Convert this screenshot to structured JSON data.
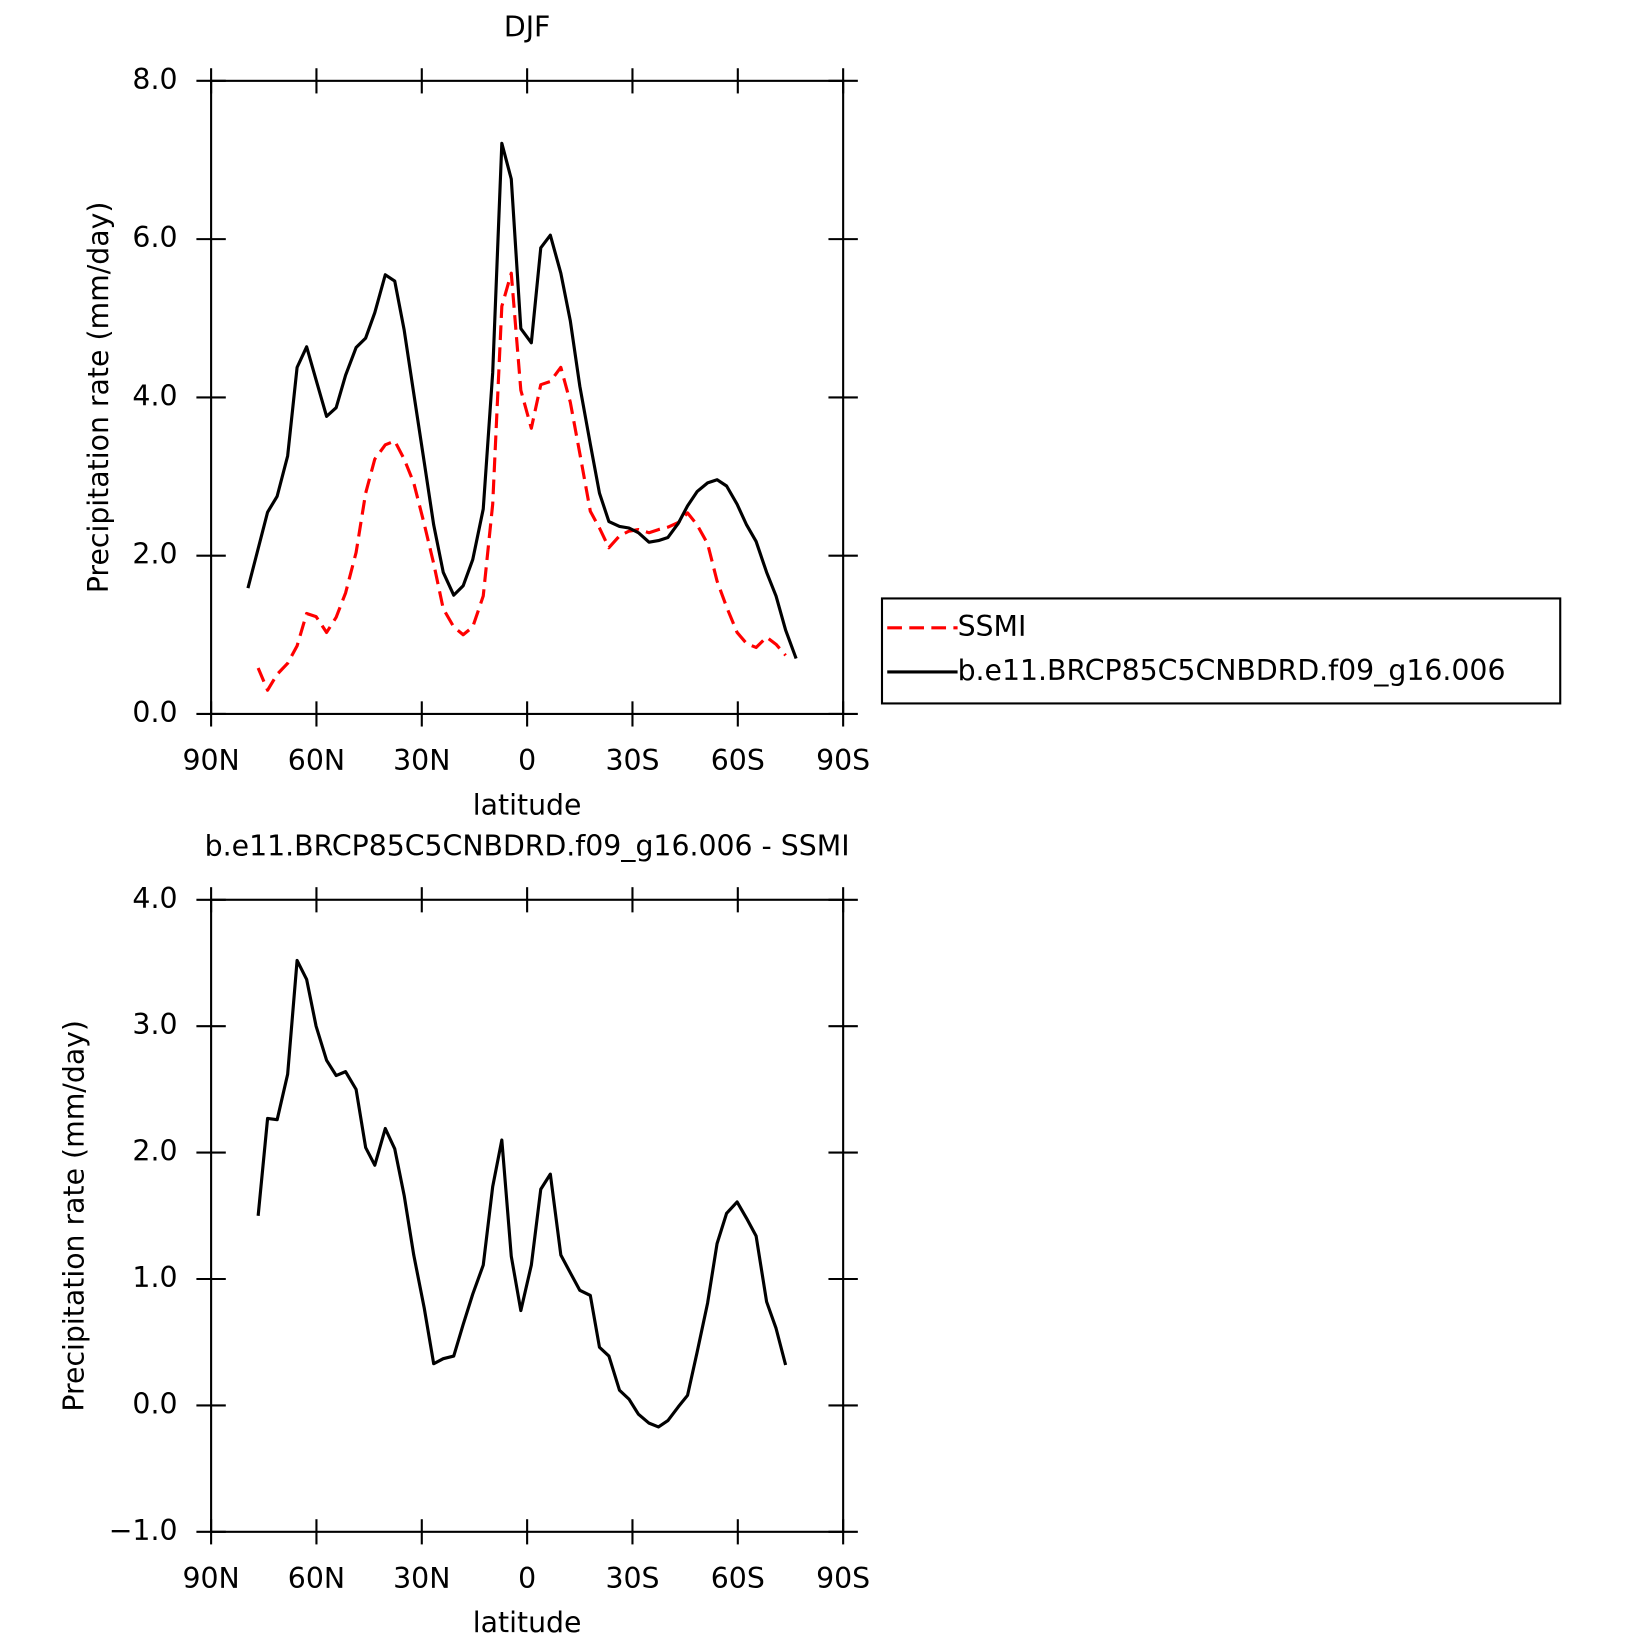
{
  "chart_data": [
    {
      "type": "line",
      "title": "DJF",
      "xlabel": "latitude",
      "ylabel": "Precipitation rate (mm/day)",
      "xlim": [
        90,
        -90
      ],
      "xticks": [
        {
          "value": 90,
          "label": "90N"
        },
        {
          "value": 60,
          "label": "60N"
        },
        {
          "value": 30,
          "label": "30N"
        },
        0,
        {
          "value": -30,
          "label": "30S"
        },
        {
          "value": -60,
          "label": "60S"
        },
        {
          "value": -90,
          "label": "90S"
        }
      ],
      "ylim": [
        0,
        8
      ],
      "yticks": [
        {
          "value": 0,
          "label": "0.0"
        },
        {
          "value": 2,
          "label": "2.0"
        },
        {
          "value": 4,
          "label": "4.0"
        },
        {
          "value": 6,
          "label": "6.0"
        },
        {
          "value": 8,
          "label": "8.0"
        }
      ],
      "legend": "outside right",
      "series": [
        {
          "name": "SSMI",
          "color": "#ff0000",
          "linestyle": "dashed",
          "x": [
            76.6,
            73.9,
            71.2,
            68.2,
            65.5,
            62.8,
            60.1,
            57.1,
            54.4,
            51.7,
            48.7,
            46.0,
            43.4,
            40.4,
            37.7,
            35.0,
            32.3,
            29.3,
            26.6,
            23.9,
            20.9,
            18.2,
            15.5,
            12.5,
            9.8,
            7.2,
            4.5,
            1.8,
            -1.2,
            -3.9,
            -6.6,
            -9.6,
            -12.3,
            -15.0,
            -18.0,
            -20.6,
            -23.3,
            -26.3,
            -29.0,
            -31.7,
            -34.7,
            -37.4,
            -40.1,
            -43.1,
            -45.7,
            -48.4,
            -51.4,
            -54.1,
            -56.8,
            -59.8,
            -62.5,
            -65.2,
            -68.2,
            -70.9,
            -73.6
          ],
          "values": [
            0.58,
            0.3,
            0.5,
            0.64,
            0.86,
            1.27,
            1.23,
            1.03,
            1.22,
            1.53,
            2.04,
            2.79,
            3.22,
            3.4,
            3.45,
            3.22,
            2.92,
            2.4,
            1.9,
            1.33,
            1.1,
            1.0,
            1.1,
            1.49,
            2.65,
            5.15,
            5.57,
            4.09,
            3.61,
            4.16,
            4.2,
            4.38,
            3.94,
            3.29,
            2.56,
            2.35,
            2.1,
            2.25,
            2.31,
            2.33,
            2.29,
            2.33,
            2.36,
            2.42,
            2.54,
            2.39,
            2.15,
            1.68,
            1.35,
            1.03,
            0.89,
            0.84,
            0.97,
            0.88,
            0.74
          ]
        },
        {
          "name": "b.e11.BRCP85C5CNBDRD.f09_g16.006",
          "color": "#000000",
          "linestyle": "solid",
          "x": [
            79.5,
            73.9,
            71.2,
            68.2,
            65.5,
            62.8,
            60.1,
            57.1,
            54.4,
            51.7,
            48.7,
            46.0,
            43.4,
            40.4,
            37.7,
            35.0,
            32.3,
            29.3,
            26.6,
            23.9,
            20.9,
            18.2,
            15.5,
            12.5,
            9.8,
            7.2,
            4.5,
            1.8,
            -1.2,
            -3.9,
            -6.6,
            -9.6,
            -12.3,
            -15.0,
            -18.0,
            -20.6,
            -23.3,
            -26.3,
            -29.0,
            -31.7,
            -34.7,
            -37.4,
            -40.1,
            -43.1,
            -45.7,
            -48.4,
            -51.4,
            -54.1,
            -56.8,
            -59.8,
            -62.5,
            -65.2,
            -68.2,
            -70.9,
            -73.6,
            -76.6
          ],
          "values": [
            1.59,
            2.55,
            2.75,
            3.26,
            4.38,
            4.64,
            4.22,
            3.76,
            3.87,
            4.28,
            4.63,
            4.75,
            5.07,
            5.55,
            5.47,
            4.85,
            4.05,
            3.18,
            2.39,
            1.79,
            1.5,
            1.62,
            1.95,
            2.59,
            4.31,
            7.21,
            6.76,
            4.87,
            4.69,
            5.89,
            6.05,
            5.57,
            4.97,
            4.14,
            3.41,
            2.79,
            2.43,
            2.37,
            2.35,
            2.29,
            2.17,
            2.19,
            2.23,
            2.41,
            2.63,
            2.81,
            2.92,
            2.96,
            2.88,
            2.65,
            2.39,
            2.18,
            1.79,
            1.49,
            1.06,
            0.7
          ]
        }
      ]
    },
    {
      "type": "line",
      "title": "b.e11.BRCP85C5CNBDRD.f09_g16.006 - SSMI",
      "xlabel": "latitude",
      "ylabel": "Precipitation rate (mm/day)",
      "xlim": [
        90,
        -90
      ],
      "xticks": [
        {
          "value": 90,
          "label": "90N"
        },
        {
          "value": 60,
          "label": "60N"
        },
        {
          "value": 30,
          "label": "30N"
        },
        0,
        {
          "value": -30,
          "label": "30S"
        },
        {
          "value": -60,
          "label": "60S"
        },
        {
          "value": -90,
          "label": "90S"
        }
      ],
      "ylim": [
        -1,
        4
      ],
      "yticks": [
        {
          "value": -1,
          "label": "−1.0"
        },
        {
          "value": 0,
          "label": "0.0"
        },
        {
          "value": 1,
          "label": "1.0"
        },
        {
          "value": 2,
          "label": "2.0"
        },
        {
          "value": 3,
          "label": "3.0"
        },
        {
          "value": 4,
          "label": "4.0"
        }
      ],
      "series": [
        {
          "color": "#000000",
          "linestyle": "solid",
          "x": [
            76.6,
            73.9,
            71.2,
            68.2,
            65.5,
            62.8,
            60.1,
            57.1,
            54.4,
            51.7,
            48.7,
            46.0,
            43.4,
            40.4,
            37.7,
            35.0,
            32.3,
            29.3,
            26.6,
            23.9,
            20.9,
            18.2,
            15.5,
            12.5,
            9.8,
            7.2,
            4.5,
            1.8,
            -1.2,
            -3.9,
            -6.6,
            -9.6,
            -12.3,
            -15.0,
            -18.0,
            -20.6,
            -23.3,
            -26.3,
            -29.0,
            -31.7,
            -34.7,
            -37.4,
            -40.1,
            -43.1,
            -45.7,
            -48.4,
            -51.4,
            -54.1,
            -56.8,
            -59.8,
            -62.5,
            -65.2,
            -68.2,
            -70.9,
            -73.6
          ],
          "values": [
            1.5,
            2.27,
            2.26,
            2.62,
            3.52,
            3.37,
            3.0,
            2.73,
            2.61,
            2.64,
            2.5,
            2.04,
            1.9,
            2.19,
            2.03,
            1.66,
            1.19,
            0.77,
            0.33,
            0.37,
            0.39,
            0.64,
            0.88,
            1.11,
            1.73,
            2.1,
            1.18,
            0.75,
            1.11,
            1.71,
            1.83,
            1.19,
            1.05,
            0.91,
            0.87,
            0.46,
            0.39,
            0.12,
            0.05,
            -0.07,
            -0.14,
            -0.17,
            -0.12,
            -0.01,
            0.08,
            0.42,
            0.81,
            1.28,
            1.52,
            1.61,
            1.48,
            1.34,
            0.82,
            0.61,
            0.32
          ]
        }
      ]
    }
  ]
}
